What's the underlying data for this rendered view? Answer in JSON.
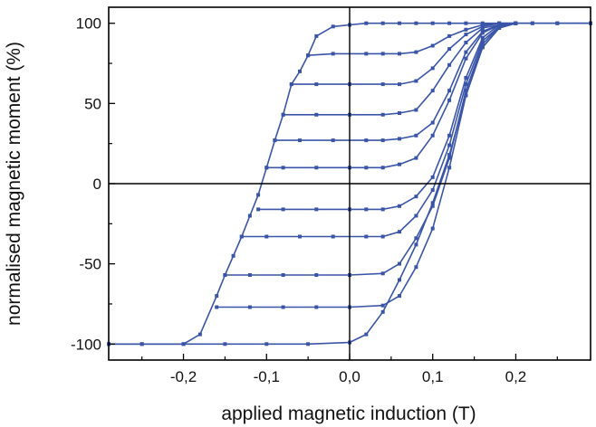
{
  "chart_data": {
    "type": "line",
    "title": "",
    "xlabel": "applied magnetic induction (T)",
    "ylabel": "normalised magnetic moment (%)",
    "xlim": [
      -0.29,
      0.29
    ],
    "ylim": [
      -110,
      110
    ],
    "x_ticks": [
      -0.2,
      -0.1,
      0.0,
      0.1,
      0.2
    ],
    "x_tick_labels": [
      "-0,2",
      "-0,1",
      "0,0",
      "0,1",
      "0,2"
    ],
    "y_ticks": [
      -100,
      -50,
      0,
      50,
      100
    ],
    "y_tick_labels": [
      "-100",
      "-50",
      "0",
      "50",
      "100"
    ],
    "grid": false,
    "zero_lines": true,
    "legend": "none",
    "line_color": "#3a55a8",
    "marker": "square",
    "series": [
      {
        "x": [
          -0.29,
          -0.25,
          -0.2,
          -0.18,
          -0.16,
          -0.15,
          -0.14,
          -0.13,
          -0.12,
          -0.11,
          -0.1,
          -0.09,
          -0.08,
          -0.07,
          -0.06,
          -0.05,
          -0.04,
          -0.02,
          0.0,
          0.02,
          0.04,
          0.06,
          0.08,
          0.1,
          0.12,
          0.14,
          0.16,
          0.18,
          0.2,
          0.22,
          0.25,
          0.29
        ],
        "y": [
          -100,
          -100,
          -100,
          -94,
          -70,
          -57,
          -45,
          -33,
          -20,
          -7,
          10,
          27,
          43,
          62,
          70,
          80,
          92,
          98,
          99,
          100,
          100,
          100,
          100,
          100,
          100,
          100,
          100,
          100,
          100,
          100,
          100,
          100
        ]
      },
      {
        "x": [
          -0.29,
          -0.25,
          -0.2,
          -0.15,
          -0.1,
          -0.05,
          0.0,
          0.02,
          0.04,
          0.06,
          0.08,
          0.1,
          0.12,
          0.14,
          0.16,
          0.18,
          0.2,
          0.22,
          0.25,
          0.29
        ],
        "y": [
          -100,
          -100,
          -100,
          -100,
          -100,
          -100,
          -99,
          -94,
          -80,
          -60,
          -38,
          -12,
          18,
          55,
          85,
          97,
          100,
          100,
          100,
          100
        ]
      },
      {
        "x": [
          -0.16,
          -0.12,
          -0.08,
          -0.04,
          0.0,
          0.04,
          0.06,
          0.08,
          0.1,
          0.12,
          0.14,
          0.16,
          0.18,
          0.2
        ],
        "y": [
          -77,
          -77,
          -77,
          -77,
          -77,
          -76,
          -70,
          -52,
          -28,
          10,
          55,
          85,
          97,
          100
        ]
      },
      {
        "x": [
          -0.15,
          -0.12,
          -0.08,
          -0.04,
          0.0,
          0.04,
          0.06,
          0.08,
          0.1,
          0.12,
          0.14,
          0.16,
          0.18,
          0.2
        ],
        "y": [
          -57,
          -57,
          -57,
          -57,
          -57,
          -56,
          -50,
          -34,
          -14,
          16,
          58,
          87,
          98,
          100
        ]
      },
      {
        "x": [
          -0.13,
          -0.1,
          -0.06,
          -0.02,
          0.02,
          0.04,
          0.06,
          0.08,
          0.1,
          0.12,
          0.14,
          0.16,
          0.18,
          0.2
        ],
        "y": [
          -33,
          -33,
          -33,
          -33,
          -33,
          -33,
          -30,
          -20,
          -4,
          24,
          62,
          89,
          98,
          100
        ]
      },
      {
        "x": [
          -0.11,
          -0.08,
          -0.04,
          0.0,
          0.02,
          0.04,
          0.06,
          0.08,
          0.1,
          0.12,
          0.14,
          0.16,
          0.18,
          0.2
        ],
        "y": [
          -16,
          -16,
          -16,
          -16,
          -16,
          -16,
          -14,
          -8,
          4,
          30,
          66,
          91,
          99,
          100
        ]
      },
      {
        "x": [
          -0.1,
          -0.08,
          -0.04,
          0.0,
          0.02,
          0.04,
          0.06,
          0.08,
          0.1,
          0.12,
          0.14,
          0.16,
          0.18,
          0.2
        ],
        "y": [
          10,
          10,
          10,
          10,
          10,
          10,
          12,
          16,
          30,
          52,
          78,
          94,
          99,
          100
        ]
      },
      {
        "x": [
          -0.09,
          -0.06,
          -0.02,
          0.02,
          0.04,
          0.06,
          0.08,
          0.1,
          0.12,
          0.14,
          0.16,
          0.18,
          0.2
        ],
        "y": [
          27,
          27,
          27,
          27,
          27,
          28,
          30,
          38,
          58,
          82,
          95,
          99,
          100
        ]
      },
      {
        "x": [
          -0.08,
          -0.04,
          0.0,
          0.04,
          0.06,
          0.08,
          0.1,
          0.12,
          0.14,
          0.16,
          0.18,
          0.2
        ],
        "y": [
          43,
          43,
          43,
          43,
          44,
          46,
          58,
          74,
          88,
          97,
          99,
          100
        ]
      },
      {
        "x": [
          -0.07,
          -0.04,
          0.0,
          0.04,
          0.06,
          0.08,
          0.1,
          0.12,
          0.14,
          0.16,
          0.18,
          0.2
        ],
        "y": [
          62,
          62,
          62,
          62,
          62,
          64,
          72,
          84,
          93,
          98,
          100,
          100
        ]
      },
      {
        "x": [
          -0.05,
          -0.02,
          0.02,
          0.04,
          0.06,
          0.08,
          0.1,
          0.12,
          0.14,
          0.16,
          0.18,
          0.2
        ],
        "y": [
          80,
          81,
          81,
          81,
          81,
          82,
          86,
          92,
          96,
          99,
          100,
          100
        ]
      }
    ]
  }
}
